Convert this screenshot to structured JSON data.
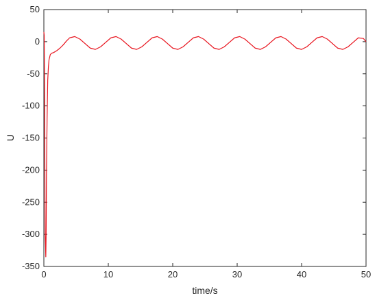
{
  "chart_data": {
    "type": "line",
    "title": "",
    "xlabel": "time/s",
    "ylabel": "U",
    "xlim": [
      0,
      50
    ],
    "ylim": [
      -350,
      50
    ],
    "xticks": [
      0,
      10,
      20,
      30,
      40,
      50
    ],
    "yticks": [
      50,
      0,
      -50,
      -100,
      -150,
      -200,
      -250,
      -300,
      -350
    ],
    "grid": false,
    "box": true,
    "series": [
      {
        "color": "#e8141e",
        "x": [
          0,
          0.05,
          0.1,
          0.15,
          0.2,
          0.3,
          0.35,
          0.4,
          0.5,
          0.6,
          0.7,
          0.8,
          1.0,
          1.2,
          1.5,
          2.0,
          2.5,
          3.0,
          3.5,
          4.0,
          4.8,
          5.6,
          6.4,
          7.2,
          8.0,
          8.8,
          9.6,
          10.4,
          11.2,
          12.0,
          12.8,
          13.6,
          14.4,
          15.2,
          16.0,
          16.8,
          17.6,
          18.4,
          19.2,
          20.0,
          20.8,
          21.6,
          22.4,
          23.2,
          24.0,
          24.8,
          25.6,
          26.4,
          27.2,
          28.0,
          28.8,
          29.6,
          30.4,
          31.2,
          32.0,
          32.8,
          33.6,
          34.4,
          35.2,
          36.0,
          36.8,
          37.6,
          38.4,
          39.2,
          40.0,
          40.8,
          41.6,
          42.4,
          43.2,
          44.0,
          44.8,
          45.6,
          46.4,
          47.2,
          48.0,
          48.8,
          49.6,
          50.0
        ],
        "y": [
          15,
          10,
          -60,
          -180,
          -300,
          -335,
          -300,
          -210,
          -120,
          -60,
          -40,
          -28,
          -20,
          -18,
          -17,
          -14,
          -10,
          -5,
          1,
          6,
          8,
          4,
          -3,
          -10,
          -12,
          -8,
          -1,
          6,
          8,
          4,
          -3,
          -10,
          -12,
          -8,
          -1,
          6,
          8,
          4,
          -3,
          -10,
          -12,
          -8,
          -1,
          6,
          8,
          4,
          -3,
          -10,
          -12,
          -8,
          -1,
          6,
          8,
          4,
          -3,
          -10,
          -12,
          -8,
          -1,
          6,
          8,
          4,
          -3,
          -10,
          -12,
          -8,
          -1,
          6,
          8,
          4,
          -3,
          -10,
          -12,
          -8,
          -1,
          6,
          5,
          0
        ]
      }
    ]
  }
}
